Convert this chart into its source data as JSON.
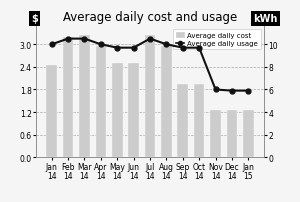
{
  "title": "Average daily cost and usage",
  "months": [
    "Jan\n14",
    "Feb\n14",
    "Mar\n14",
    "Apr\n14",
    "May\n14",
    "Jun\n14",
    "Jul\n14",
    "Aug\n14",
    "Sep\n14",
    "Oct\n14",
    "Nov\n14",
    "Dec\n14",
    "Jan\n15"
  ],
  "bar_values": [
    2.45,
    3.2,
    3.25,
    2.95,
    2.5,
    2.5,
    3.25,
    2.95,
    1.95,
    1.95,
    1.25,
    1.25,
    1.25
  ],
  "line_values": [
    10.0,
    10.5,
    10.5,
    10.0,
    9.7,
    9.7,
    10.5,
    10.0,
    9.7,
    9.7,
    6.0,
    5.9,
    5.9
  ],
  "bar_color": "#cccccc",
  "line_color": "#111111",
  "ylabel_left": "$",
  "ylabel_right": "kWh",
  "ylim_left": [
    0,
    3.5
  ],
  "ylim_right": [
    0,
    11.67
  ],
  "yticks_left": [
    0,
    0.6,
    1.2,
    1.8,
    2.4,
    3.0
  ],
  "yticks_right": [
    0,
    2,
    4,
    6,
    8,
    10
  ],
  "legend_cost": "Average daily cost",
  "legend_usage": "Average daily usage",
  "bg_color": "#f0f0f0",
  "grid_color": "#aaaaaa",
  "title_fontsize": 8.5,
  "tick_fontsize": 5.5
}
